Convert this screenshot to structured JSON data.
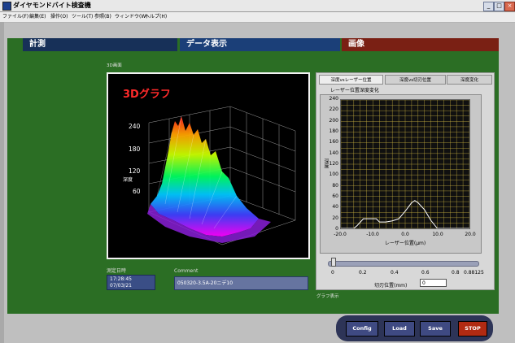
{
  "window": {
    "title": "ダイヤモンドバイト検査機"
  },
  "menu": [
    "ファイル(F)",
    "編集(E)",
    "操作(O)",
    "ツール(T)",
    "参照(B)",
    "ウィンドウ(W)",
    "ヘルプ(H)"
  ],
  "tabs": {
    "measure": "計測",
    "data": "データ表示",
    "image": "画像"
  },
  "graph3d": {
    "caption": "3D画面",
    "title": "3Dグラフ",
    "z_axis_label": "深度",
    "z_ticks": [
      "240",
      "180",
      "120",
      "60"
    ]
  },
  "measurement": {
    "date_label": "測定日時",
    "time": "17:28:45",
    "date": "07/03/21"
  },
  "comment": {
    "label": "Comment",
    "value": "050320-3.5A-20ニデ10"
  },
  "graph_display_label": "グラフ表示",
  "subtabs": [
    "深度vsレーザー位置",
    "深度vs切刃位置",
    "深度変化"
  ],
  "depth_chart": {
    "title": "レーザー位置深度変化",
    "xlabel": "レーザー位置(μm)",
    "ylabel": "深度",
    "x_ticks": [
      "-20.0",
      "-10.0",
      "0.0",
      "10.0",
      "20.0"
    ],
    "y_ticks": [
      "240",
      "220",
      "200",
      "180",
      "160",
      "140",
      "120",
      "100",
      "80",
      "60",
      "40",
      "20",
      "0"
    ]
  },
  "chart_data": {
    "type": "line",
    "title": "レーザー位置深度変化",
    "xlabel": "レーザー位置(μm)",
    "ylabel": "深度",
    "xlim": [
      -20,
      20
    ],
    "ylim": [
      0,
      240
    ],
    "grid": true,
    "series": [
      {
        "color": "#ffffff",
        "x": [
          -20,
          -16,
          -15,
          -13,
          -9,
          -8,
          -6,
          -4,
          -2,
          0,
          1,
          2,
          3,
          4,
          6,
          8,
          10,
          14,
          20
        ],
        "y": [
          0,
          0,
          5,
          18,
          18,
          12,
          12,
          14,
          18,
          32,
          40,
          48,
          52,
          48,
          35,
          15,
          0,
          0,
          0
        ]
      }
    ]
  },
  "slider": {
    "value": 0.0,
    "ticks": [
      "0",
      "0.2",
      "0.4",
      "0.6",
      "0.8",
      "0.88125"
    ],
    "label": "切刃位置(mm)",
    "input_value": "0"
  },
  "buttons": {
    "config": "Config",
    "load": "Load",
    "save": "Save",
    "stop": "STOP"
  },
  "colors": {
    "panel": "#2b6e24",
    "tab_measure": "#173058",
    "tab_data": "#1b3f78",
    "tab_image": "#7a2014",
    "stop": "#b12a12"
  }
}
